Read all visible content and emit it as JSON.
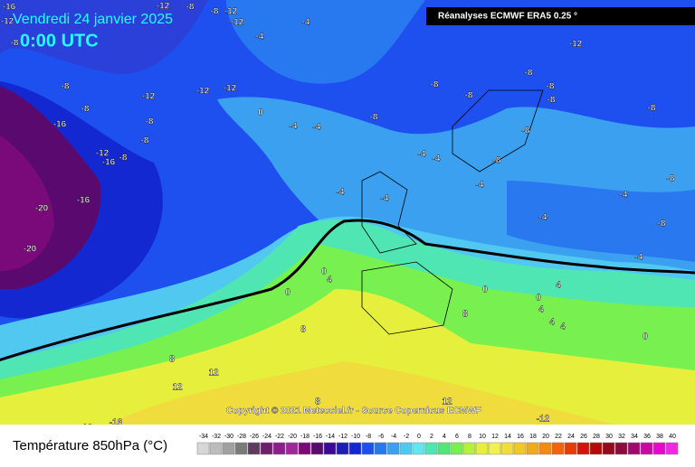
{
  "header": {
    "date": "Vendredi 24 janvier 2025",
    "time": "0:00 UTC",
    "source": "Réanalyses ECMWF ERA5 0.25 °"
  },
  "copyright": "Copyright © 2021 Meteociel.fr - Source Copernicus ECMWF",
  "contour_labels": [
    -16,
    -12,
    -8,
    -12,
    -8,
    -8,
    -12,
    -12,
    -4,
    -4,
    -8,
    -12,
    -12,
    -12,
    -8,
    -16,
    -8,
    -8,
    -12,
    -16,
    -8,
    -16,
    -20,
    -20,
    0,
    -4,
    -4,
    -8,
    -4,
    -4,
    -4,
    -4,
    -8,
    -8,
    -8,
    -8,
    -8,
    -8,
    -8,
    -8,
    -4,
    -4,
    -4,
    -8,
    -8,
    -4,
    -12,
    0,
    4,
    0,
    0,
    4,
    0,
    4,
    4,
    4,
    0,
    8,
    8,
    8,
    12,
    12,
    8,
    12,
    -12,
    -16,
    -16
  ],
  "legend": {
    "label": "Température 850hPa (°C)",
    "ticks": [
      -34,
      -32,
      -30,
      -28,
      -26,
      -24,
      -22,
      -20,
      -18,
      -16,
      -14,
      -12,
      -10,
      -8,
      -6,
      -4,
      -2,
      0,
      2,
      4,
      6,
      8,
      10,
      12,
      14,
      16,
      18,
      20,
      22,
      24,
      26,
      28,
      30,
      32,
      34,
      36,
      38,
      40
    ],
    "colors": [
      "#d6d6d6",
      "#bcbcbc",
      "#a0a0a0",
      "#7a7a7a",
      "#5e3c5e",
      "#6e1e6e",
      "#8c1e8c",
      "#a0289a",
      "#7a0a7a",
      "#5a0a6e",
      "#3c0a96",
      "#1e1eb4",
      "#1428d2",
      "#1e50f0",
      "#2878f0",
      "#3ca0f0",
      "#50c8f0",
      "#64e6f0",
      "#50e6b4",
      "#50e678",
      "#78f050",
      "#b4f03c",
      "#e6f03c",
      "#f0f050",
      "#f0dc3c",
      "#f0c828",
      "#f0aa1e",
      "#f08c14",
      "#f0640a",
      "#e63c0a",
      "#d2140a",
      "#b40a0a",
      "#960a1e",
      "#8c0a3c",
      "#a00a6e",
      "#c80aa0",
      "#e60ac8",
      "#f028e6"
    ]
  }
}
